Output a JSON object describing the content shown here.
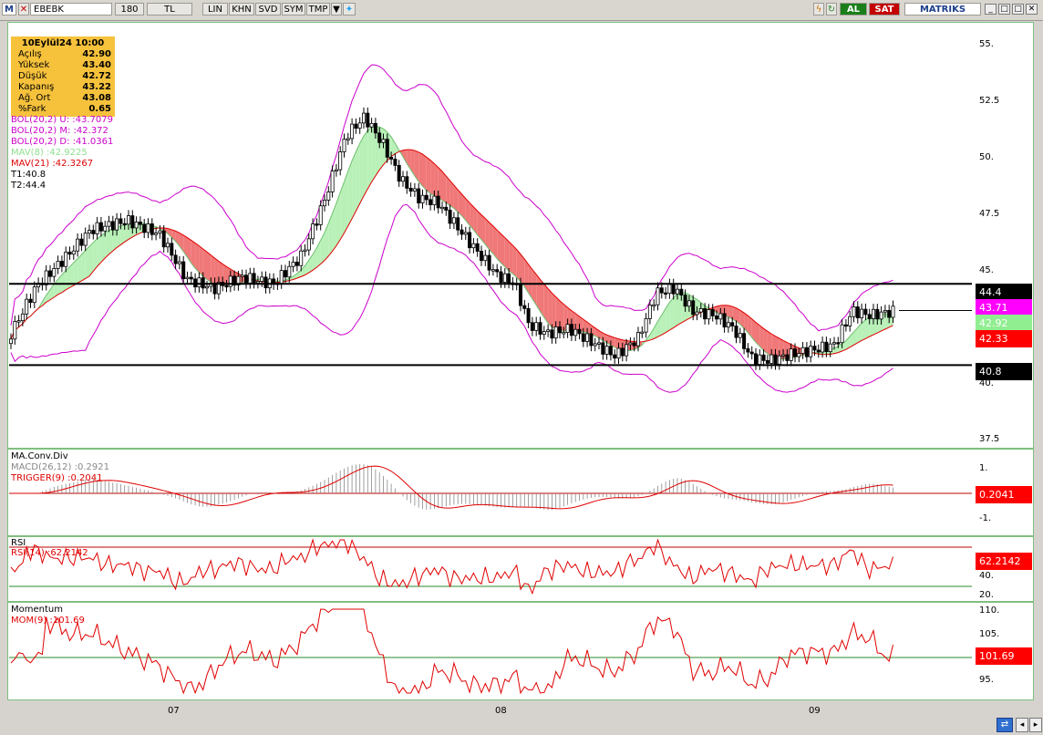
{
  "toolbar": {
    "logo": "M",
    "symbol": "EBEBK",
    "interval": "180",
    "currency": "TL",
    "buttons": [
      "LIN",
      "KHN",
      "SVD",
      "SYM",
      "TMP"
    ],
    "buy": "AL",
    "sell": "SAT",
    "brand": "MATRIKS"
  },
  "info_box": {
    "date": "10Eylül24 10:00",
    "rows": [
      {
        "label": "Açılış",
        "value": "42.90"
      },
      {
        "label": "Yüksek",
        "value": "43.40"
      },
      {
        "label": "Düşük",
        "value": "42.72"
      },
      {
        "label": "Kapanış",
        "value": "43.22"
      },
      {
        "label": "Ağ. Ort",
        "value": "43.08"
      },
      {
        "label": "%Fark",
        "value": "0.65"
      }
    ]
  },
  "price_legend": {
    "bol_u": "BOL(20,2) U:   :43.7079",
    "bol_m": "BOL(20,2) M:   :42.372",
    "bol_d": "BOL(20,2) D:   :41.0361",
    "mav8": "MAV(8)       :42.9225",
    "mav21": "MAV(21)      :42.3267",
    "t1": "T1:40.8",
    "t2": "T2:44.4"
  },
  "price_axis": [
    "55.",
    "52.5",
    "50.",
    "47.5",
    "45.",
    "40.",
    "37.5"
  ],
  "price_tags": [
    {
      "text": "44.4",
      "bg": "#000000",
      "fg": "#ffffff"
    },
    {
      "text": "43.71",
      "bg": "#ff00ff",
      "fg": "#ffffff"
    },
    {
      "text": "42.92",
      "bg": "#90ee90",
      "fg": "#ffffff"
    },
    {
      "text": "42.33",
      "bg": "#ff0000",
      "fg": "#ffffff"
    },
    {
      "text": "40.8",
      "bg": "#000000",
      "fg": "#ffffff"
    }
  ],
  "macd": {
    "title": "MA.Conv.Div",
    "macd": "MACD(26,12)   :0.2921",
    "trigger": "TRIGGER(9)    :0.2041",
    "axis": [
      "1.",
      "-1."
    ],
    "tag": "0.2041"
  },
  "rsi": {
    "title": "RSI",
    "label": "RSI(14)   :62.2142",
    "axis": [
      "40.",
      "20."
    ],
    "tag": "62.2142"
  },
  "momentum": {
    "title": "Momentum",
    "label": "MOM(9)   :101.69",
    "axis": [
      "110.",
      "105.",
      "95."
    ],
    "tag": "101.69"
  },
  "x_axis": [
    "07",
    "08",
    "09"
  ],
  "colors": {
    "up": "#ffffff",
    "down": "#000000",
    "bollinger": "#cc00cc",
    "mav_up": "#b8f0b8",
    "mav_down": "#f07878",
    "red": "#e00000"
  }
}
